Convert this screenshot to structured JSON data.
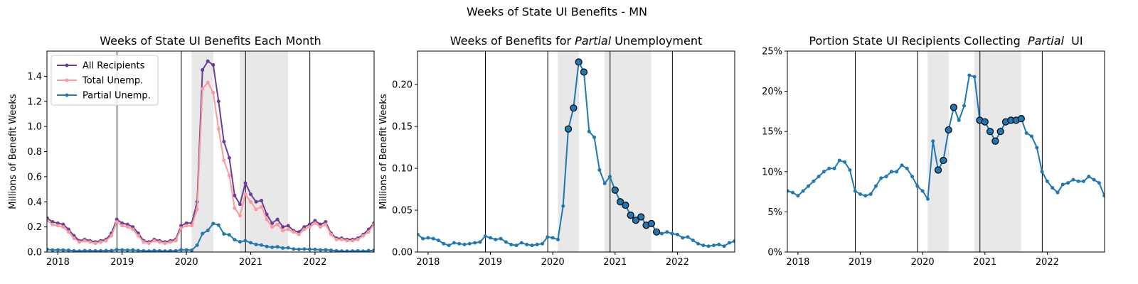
{
  "suptitle": "Weeks of State UI Benefits - MN",
  "colors": {
    "all_recipients": "#6a3d9a",
    "total_unemp": "#fb9a99",
    "partial_unemp": "#1f78b4",
    "shade": "#e8e8e8",
    "year_line": "#000000"
  },
  "chart_data": [
    {
      "type": "line",
      "title": "Weeks of State UI Benefits Each Month",
      "ylabel": "Millions of Benefit Weeks",
      "xlabel": "",
      "xlim": [
        2017.83,
        2022.92
      ],
      "ylim": [
        0,
        1.6
      ],
      "yticks": [
        0.0,
        0.2,
        0.4,
        0.6,
        0.8,
        1.0,
        1.2,
        1.4
      ],
      "ytick_labels": [
        "0.0",
        "0.2",
        "0.4",
        "0.6",
        "0.8",
        "1.0",
        "1.2",
        "1.4"
      ],
      "xticks": [
        2018,
        2019,
        2020,
        2021,
        2022
      ],
      "xtick_labels": [
        "2018",
        "2019",
        "2020",
        "2021",
        "2022"
      ],
      "year_lines": [
        2018.92,
        2019.92,
        2020.92,
        2021.92
      ],
      "shaded_regions": [
        [
          2020.08,
          2020.42
        ],
        [
          2020.83,
          2021.58
        ]
      ],
      "grid": false,
      "legend": {
        "placement": "top-left",
        "entries": [
          "All Recipients",
          "Total Unemp.",
          "Partial Unemp."
        ]
      },
      "x_start": "2017-11",
      "series": [
        {
          "name": "All Recipients",
          "color": "#6a3d9a",
          "values": [
            0.27,
            0.24,
            0.23,
            0.22,
            0.18,
            0.13,
            0.09,
            0.1,
            0.09,
            0.08,
            0.09,
            0.1,
            0.15,
            0.26,
            0.23,
            0.22,
            0.2,
            0.15,
            0.09,
            0.08,
            0.1,
            0.09,
            0.08,
            0.09,
            0.1,
            0.21,
            0.23,
            0.23,
            0.4,
            1.45,
            1.52,
            1.49,
            1.2,
            0.88,
            0.75,
            0.45,
            0.38,
            0.55,
            0.46,
            0.4,
            0.41,
            0.3,
            0.23,
            0.26,
            0.2,
            0.21,
            0.17,
            0.16,
            0.2,
            0.22,
            0.25,
            0.22,
            0.24,
            0.15,
            0.11,
            0.11,
            0.1,
            0.1,
            0.11,
            0.14,
            0.18,
            0.23
          ]
        },
        {
          "name": "Total Unemp.",
          "color": "#fb9a99",
          "values": [
            0.25,
            0.22,
            0.21,
            0.2,
            0.16,
            0.11,
            0.08,
            0.09,
            0.08,
            0.07,
            0.08,
            0.09,
            0.13,
            0.24,
            0.21,
            0.2,
            0.18,
            0.13,
            0.08,
            0.07,
            0.09,
            0.08,
            0.07,
            0.08,
            0.09,
            0.19,
            0.21,
            0.21,
            0.34,
            1.3,
            1.35,
            1.27,
            0.98,
            0.73,
            0.61,
            0.35,
            0.29,
            0.46,
            0.4,
            0.34,
            0.36,
            0.26,
            0.2,
            0.22,
            0.17,
            0.18,
            0.16,
            0.14,
            0.18,
            0.2,
            0.23,
            0.2,
            0.22,
            0.14,
            0.1,
            0.1,
            0.09,
            0.09,
            0.1,
            0.13,
            0.16,
            0.22
          ]
        },
        {
          "name": "Partial Unemp.",
          "color": "#1f78b4",
          "values": [
            0.021,
            0.016,
            0.017,
            0.016,
            0.014,
            0.01,
            0.008,
            0.011,
            0.01,
            0.009,
            0.01,
            0.011,
            0.012,
            0.019,
            0.017,
            0.015,
            0.016,
            0.012,
            0.009,
            0.008,
            0.011,
            0.009,
            0.008,
            0.009,
            0.01,
            0.018,
            0.017,
            0.015,
            0.055,
            0.147,
            0.172,
            0.227,
            0.215,
            0.144,
            0.137,
            0.098,
            0.082,
            0.09,
            0.074,
            0.06,
            0.056,
            0.044,
            0.038,
            0.042,
            0.032,
            0.034,
            0.024,
            0.022,
            0.024,
            0.022,
            0.021,
            0.017,
            0.018,
            0.014,
            0.01,
            0.008,
            0.007,
            0.008,
            0.009,
            0.007,
            0.011,
            0.013
          ]
        }
      ]
    },
    {
      "type": "line",
      "title_parts": [
        "Weeks of Benefits for ",
        "Partial",
        " Unemployment"
      ],
      "ylabel": "Millions of Benefit Weeks",
      "xlabel": "",
      "xlim": [
        2017.83,
        2022.92
      ],
      "ylim": [
        0,
        0.24
      ],
      "yticks": [
        0.0,
        0.05,
        0.1,
        0.15,
        0.2
      ],
      "ytick_labels": [
        "0.00",
        "0.05",
        "0.10",
        "0.15",
        "0.20"
      ],
      "xticks": [
        2018,
        2019,
        2020,
        2021,
        2022
      ],
      "xtick_labels": [
        "2018",
        "2019",
        "2020",
        "2021",
        "2022"
      ],
      "year_lines": [
        2018.92,
        2019.92,
        2020.92,
        2021.92
      ],
      "shaded_regions": [
        [
          2020.08,
          2020.42
        ],
        [
          2020.83,
          2021.58
        ]
      ],
      "grid": false,
      "x_start": "2017-11",
      "highlight_indices": [
        29,
        30,
        31,
        32,
        38,
        39,
        40,
        41,
        42,
        43,
        44,
        45,
        46
      ],
      "series": [
        {
          "color": "#1f78b4",
          "values": [
            0.021,
            0.016,
            0.017,
            0.016,
            0.014,
            0.01,
            0.008,
            0.011,
            0.01,
            0.009,
            0.01,
            0.011,
            0.012,
            0.019,
            0.017,
            0.015,
            0.016,
            0.012,
            0.009,
            0.008,
            0.011,
            0.009,
            0.008,
            0.009,
            0.01,
            0.018,
            0.017,
            0.015,
            0.055,
            0.147,
            0.172,
            0.227,
            0.215,
            0.144,
            0.137,
            0.098,
            0.082,
            0.09,
            0.074,
            0.06,
            0.056,
            0.044,
            0.038,
            0.042,
            0.032,
            0.034,
            0.024,
            0.022,
            0.024,
            0.022,
            0.021,
            0.017,
            0.018,
            0.014,
            0.01,
            0.008,
            0.007,
            0.008,
            0.009,
            0.007,
            0.011,
            0.013
          ]
        }
      ]
    },
    {
      "type": "line",
      "title_parts": [
        "Portion State UI Recipients Collecting  ",
        "Partial",
        "  UI"
      ],
      "ylabel": "",
      "xlabel": "",
      "xlim": [
        2017.83,
        2022.92
      ],
      "ylim": [
        0,
        25
      ],
      "yticks": [
        0,
        5,
        10,
        15,
        20,
        25
      ],
      "ytick_labels": [
        "0%",
        "5%",
        "10%",
        "15%",
        "20%",
        "25%"
      ],
      "xticks": [
        2018,
        2019,
        2020,
        2021,
        2022
      ],
      "xtick_labels": [
        "2018",
        "2019",
        "2020",
        "2021",
        "2022"
      ],
      "year_lines": [
        2018.92,
        2019.92,
        2020.92,
        2021.92
      ],
      "shaded_regions": [
        [
          2020.08,
          2020.42
        ],
        [
          2020.83,
          2021.58
        ]
      ],
      "grid": false,
      "x_start": "2017-11",
      "highlight_indices": [
        29,
        30,
        31,
        32,
        37,
        38,
        39,
        40,
        41,
        42,
        43,
        44,
        45
      ],
      "series": [
        {
          "color": "#1f78b4",
          "values": [
            7.6,
            7.4,
            7.0,
            7.6,
            8.2,
            8.8,
            9.4,
            10.0,
            10.4,
            10.4,
            11.4,
            11.2,
            10.2,
            7.6,
            7.2,
            7.0,
            7.2,
            8.2,
            9.2,
            9.4,
            10.0,
            10.0,
            10.8,
            10.4,
            9.4,
            8.2,
            7.6,
            6.6,
            13.8,
            10.2,
            11.4,
            15.2,
            18.0,
            16.4,
            18.2,
            22.0,
            21.8,
            16.4,
            16.2,
            15.0,
            13.8,
            15.0,
            16.2,
            16.4,
            16.4,
            16.6,
            14.8,
            14.4,
            13.0,
            10.0,
            8.8,
            8.0,
            7.4,
            8.4,
            8.6,
            9.0,
            8.8,
            8.8,
            9.4,
            9.0,
            8.6,
            7.0
          ]
        }
      ]
    }
  ]
}
